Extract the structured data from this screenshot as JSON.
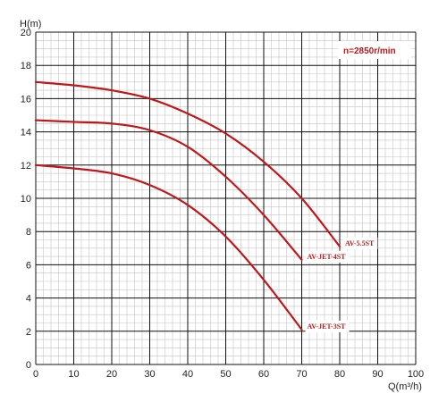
{
  "chart_data": {
    "type": "line",
    "title": "",
    "xlabel": "Q(m³/h)",
    "ylabel": "H(m)",
    "xlim": [
      0,
      100
    ],
    "ylim": [
      0,
      20
    ],
    "x_ticks": [
      0,
      10,
      20,
      30,
      40,
      50,
      60,
      70,
      80,
      90,
      100
    ],
    "y_ticks": [
      0,
      2,
      4,
      6,
      8,
      10,
      12,
      14,
      16,
      18,
      20
    ],
    "grid": true,
    "annotation": "n=2850r/min",
    "series_color": "#c0181a",
    "series": [
      {
        "name": "AV-5.5ST",
        "x": [
          0,
          10,
          20,
          30,
          40,
          50,
          60,
          70,
          80
        ],
        "y": [
          17.0,
          16.8,
          16.5,
          16.0,
          15.1,
          13.9,
          12.2,
          10.0,
          7.1
        ]
      },
      {
        "name": "AV-JET-4ST",
        "x": [
          0,
          10,
          20,
          30,
          40,
          50,
          60,
          70
        ],
        "y": [
          14.7,
          14.6,
          14.5,
          14.1,
          13.1,
          11.3,
          9.0,
          6.3
        ]
      },
      {
        "name": "AV-JET-3ST",
        "x": [
          0,
          10,
          20,
          30,
          40,
          50,
          60,
          70
        ],
        "y": [
          12.0,
          11.8,
          11.5,
          10.8,
          9.6,
          7.7,
          5.1,
          2.1
        ]
      }
    ]
  }
}
